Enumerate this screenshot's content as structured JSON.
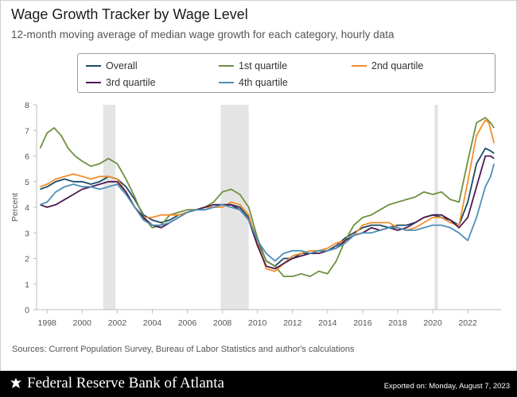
{
  "header": {
    "title": "Wage Growth Tracker by Wage Level",
    "subtitle": "12-month moving average of median wage growth for each category, hourly data"
  },
  "footer": {
    "sources": "Sources: Current Population Survey, Bureau of Labor Statistics and author's calculations",
    "brand": "Federal Reserve Bank of Atlanta",
    "brand_icon": "eagle-seal-icon",
    "exported": "Exported on: Monday, August 7, 2023"
  },
  "chart_data": {
    "type": "line",
    "title": "Wage Growth Tracker by Wage Level",
    "subtitle": "12-month moving average of median wage growth for each category, hourly data",
    "xlabel": "",
    "ylabel": "Percent",
    "xlim": [
      1997.4,
      2023.9
    ],
    "ylim": [
      0,
      8
    ],
    "y_ticks": [
      0,
      1,
      2,
      3,
      4,
      5,
      6,
      7,
      8
    ],
    "x_ticks": [
      1998,
      2000,
      2002,
      2004,
      2006,
      2008,
      2010,
      2012,
      2014,
      2016,
      2018,
      2020,
      2022
    ],
    "grid": false,
    "legend_position": "top",
    "recessions": [
      [
        2001.2,
        2001.9
      ],
      [
        2007.9,
        2009.5
      ],
      [
        2020.1,
        2020.3
      ]
    ],
    "series": [
      {
        "name": "Overall",
        "color": "#1b4a67",
        "points": [
          [
            1997.6,
            4.7
          ],
          [
            1998.0,
            4.8
          ],
          [
            1998.5,
            5.0
          ],
          [
            1999.0,
            5.1
          ],
          [
            1999.5,
            5.0
          ],
          [
            2000.0,
            5.0
          ],
          [
            2000.5,
            4.9
          ],
          [
            2001.0,
            5.0
          ],
          [
            2001.5,
            5.2
          ],
          [
            2002.0,
            5.1
          ],
          [
            2002.5,
            4.8
          ],
          [
            2003.0,
            4.3
          ],
          [
            2003.5,
            3.7
          ],
          [
            2004.0,
            3.5
          ],
          [
            2004.5,
            3.4
          ],
          [
            2005.0,
            3.5
          ],
          [
            2005.5,
            3.7
          ],
          [
            2006.0,
            3.8
          ],
          [
            2006.5,
            3.9
          ],
          [
            2007.0,
            3.9
          ],
          [
            2007.5,
            4.0
          ],
          [
            2008.0,
            4.1
          ],
          [
            2008.5,
            4.1
          ],
          [
            2009.0,
            4.0
          ],
          [
            2009.5,
            3.6
          ],
          [
            2010.0,
            2.7
          ],
          [
            2010.5,
            1.9
          ],
          [
            2011.0,
            1.7
          ],
          [
            2011.5,
            2.0
          ],
          [
            2012.0,
            2.0
          ],
          [
            2012.5,
            2.2
          ],
          [
            2013.0,
            2.2
          ],
          [
            2013.5,
            2.3
          ],
          [
            2014.0,
            2.3
          ],
          [
            2014.5,
            2.5
          ],
          [
            2015.0,
            2.8
          ],
          [
            2015.5,
            3.0
          ],
          [
            2016.0,
            3.2
          ],
          [
            2016.5,
            3.3
          ],
          [
            2017.0,
            3.3
          ],
          [
            2017.5,
            3.2
          ],
          [
            2018.0,
            3.3
          ],
          [
            2018.5,
            3.3
          ],
          [
            2019.0,
            3.4
          ],
          [
            2019.5,
            3.6
          ],
          [
            2020.0,
            3.7
          ],
          [
            2020.5,
            3.6
          ],
          [
            2021.0,
            3.5
          ],
          [
            2021.5,
            3.3
          ],
          [
            2022.0,
            4.2
          ],
          [
            2022.5,
            5.7
          ],
          [
            2023.0,
            6.3
          ],
          [
            2023.3,
            6.2
          ],
          [
            2023.5,
            6.1
          ]
        ]
      },
      {
        "name": "1st quartile",
        "color": "#6e9140",
        "points": [
          [
            1997.6,
            6.3
          ],
          [
            1998.0,
            6.9
          ],
          [
            1998.4,
            7.1
          ],
          [
            1998.8,
            6.8
          ],
          [
            1999.2,
            6.3
          ],
          [
            1999.6,
            6.0
          ],
          [
            2000.0,
            5.8
          ],
          [
            2000.5,
            5.6
          ],
          [
            2001.0,
            5.7
          ],
          [
            2001.5,
            5.9
          ],
          [
            2002.0,
            5.7
          ],
          [
            2002.5,
            5.1
          ],
          [
            2003.0,
            4.4
          ],
          [
            2003.5,
            3.6
          ],
          [
            2004.0,
            3.2
          ],
          [
            2004.5,
            3.3
          ],
          [
            2005.0,
            3.7
          ],
          [
            2005.5,
            3.8
          ],
          [
            2006.0,
            3.9
          ],
          [
            2006.5,
            3.9
          ],
          [
            2007.0,
            4.0
          ],
          [
            2007.5,
            4.2
          ],
          [
            2008.0,
            4.6
          ],
          [
            2008.5,
            4.7
          ],
          [
            2009.0,
            4.5
          ],
          [
            2009.5,
            4.0
          ],
          [
            2010.0,
            2.8
          ],
          [
            2010.5,
            1.9
          ],
          [
            2011.0,
            1.7
          ],
          [
            2011.5,
            1.3
          ],
          [
            2012.0,
            1.3
          ],
          [
            2012.5,
            1.4
          ],
          [
            2013.0,
            1.3
          ],
          [
            2013.5,
            1.5
          ],
          [
            2014.0,
            1.4
          ],
          [
            2014.5,
            1.9
          ],
          [
            2015.0,
            2.7
          ],
          [
            2015.5,
            3.3
          ],
          [
            2016.0,
            3.6
          ],
          [
            2016.5,
            3.7
          ],
          [
            2017.0,
            3.9
          ],
          [
            2017.5,
            4.1
          ],
          [
            2018.0,
            4.2
          ],
          [
            2018.5,
            4.3
          ],
          [
            2019.0,
            4.4
          ],
          [
            2019.5,
            4.6
          ],
          [
            2020.0,
            4.5
          ],
          [
            2020.5,
            4.6
          ],
          [
            2021.0,
            4.3
          ],
          [
            2021.5,
            4.2
          ],
          [
            2022.0,
            5.8
          ],
          [
            2022.5,
            7.3
          ],
          [
            2023.0,
            7.5
          ],
          [
            2023.3,
            7.3
          ],
          [
            2023.5,
            7.1
          ]
        ]
      },
      {
        "name": "2nd quartile",
        "color": "#f28e2b",
        "points": [
          [
            1997.6,
            4.8
          ],
          [
            1998.0,
            4.9
          ],
          [
            1998.5,
            5.1
          ],
          [
            1999.0,
            5.2
          ],
          [
            1999.5,
            5.3
          ],
          [
            2000.0,
            5.2
          ],
          [
            2000.5,
            5.1
          ],
          [
            2001.0,
            5.2
          ],
          [
            2001.5,
            5.2
          ],
          [
            2002.0,
            5.1
          ],
          [
            2002.5,
            4.6
          ],
          [
            2003.0,
            4.0
          ],
          [
            2003.5,
            3.6
          ],
          [
            2004.0,
            3.6
          ],
          [
            2004.5,
            3.7
          ],
          [
            2005.0,
            3.7
          ],
          [
            2005.5,
            3.7
          ],
          [
            2006.0,
            3.8
          ],
          [
            2006.5,
            3.9
          ],
          [
            2007.0,
            4.0
          ],
          [
            2007.5,
            4.0
          ],
          [
            2008.0,
            4.0
          ],
          [
            2008.5,
            4.2
          ],
          [
            2009.0,
            4.1
          ],
          [
            2009.5,
            3.7
          ],
          [
            2010.0,
            2.6
          ],
          [
            2010.5,
            1.6
          ],
          [
            2011.0,
            1.5
          ],
          [
            2011.5,
            1.8
          ],
          [
            2012.0,
            2.1
          ],
          [
            2012.5,
            2.2
          ],
          [
            2013.0,
            2.3
          ],
          [
            2013.5,
            2.3
          ],
          [
            2014.0,
            2.4
          ],
          [
            2014.5,
            2.6
          ],
          [
            2015.0,
            2.7
          ],
          [
            2015.5,
            2.9
          ],
          [
            2016.0,
            3.3
          ],
          [
            2016.5,
            3.4
          ],
          [
            2017.0,
            3.4
          ],
          [
            2017.5,
            3.4
          ],
          [
            2018.0,
            3.2
          ],
          [
            2018.5,
            3.1
          ],
          [
            2019.0,
            3.2
          ],
          [
            2019.5,
            3.4
          ],
          [
            2020.0,
            3.6
          ],
          [
            2020.5,
            3.6
          ],
          [
            2021.0,
            3.4
          ],
          [
            2021.5,
            3.3
          ],
          [
            2022.0,
            5.0
          ],
          [
            2022.5,
            6.8
          ],
          [
            2023.0,
            7.4
          ],
          [
            2023.2,
            7.3
          ],
          [
            2023.5,
            6.5
          ]
        ]
      },
      {
        "name": "3rd quartile",
        "color": "#4b1a50",
        "points": [
          [
            1997.6,
            4.1
          ],
          [
            1998.0,
            4.0
          ],
          [
            1998.5,
            4.1
          ],
          [
            1999.0,
            4.3
          ],
          [
            1999.5,
            4.5
          ],
          [
            2000.0,
            4.7
          ],
          [
            2000.5,
            4.8
          ],
          [
            2001.0,
            4.9
          ],
          [
            2001.5,
            5.0
          ],
          [
            2002.0,
            5.0
          ],
          [
            2002.5,
            4.6
          ],
          [
            2003.0,
            4.0
          ],
          [
            2003.5,
            3.6
          ],
          [
            2004.0,
            3.3
          ],
          [
            2004.5,
            3.2
          ],
          [
            2005.0,
            3.4
          ],
          [
            2005.5,
            3.6
          ],
          [
            2006.0,
            3.8
          ],
          [
            2006.5,
            3.9
          ],
          [
            2007.0,
            4.0
          ],
          [
            2007.5,
            4.1
          ],
          [
            2008.0,
            4.1
          ],
          [
            2008.5,
            4.1
          ],
          [
            2009.0,
            3.9
          ],
          [
            2009.5,
            3.5
          ],
          [
            2010.0,
            2.5
          ],
          [
            2010.5,
            1.7
          ],
          [
            2011.0,
            1.6
          ],
          [
            2011.5,
            1.8
          ],
          [
            2012.0,
            2.0
          ],
          [
            2012.5,
            2.1
          ],
          [
            2013.0,
            2.2
          ],
          [
            2013.5,
            2.2
          ],
          [
            2014.0,
            2.3
          ],
          [
            2014.5,
            2.4
          ],
          [
            2015.0,
            2.7
          ],
          [
            2015.5,
            2.9
          ],
          [
            2016.0,
            3.0
          ],
          [
            2016.5,
            3.2
          ],
          [
            2017.0,
            3.1
          ],
          [
            2017.5,
            3.2
          ],
          [
            2018.0,
            3.1
          ],
          [
            2018.5,
            3.2
          ],
          [
            2019.0,
            3.4
          ],
          [
            2019.5,
            3.6
          ],
          [
            2020.0,
            3.7
          ],
          [
            2020.5,
            3.7
          ],
          [
            2021.0,
            3.5
          ],
          [
            2021.5,
            3.2
          ],
          [
            2022.0,
            3.6
          ],
          [
            2022.5,
            4.8
          ],
          [
            2023.0,
            6.0
          ],
          [
            2023.3,
            6.0
          ],
          [
            2023.5,
            5.9
          ]
        ]
      },
      {
        "name": "4th quartile",
        "color": "#4f8fb8",
        "points": [
          [
            1997.6,
            4.1
          ],
          [
            1998.0,
            4.2
          ],
          [
            1998.5,
            4.6
          ],
          [
            1999.0,
            4.8
          ],
          [
            1999.5,
            4.9
          ],
          [
            2000.0,
            4.8
          ],
          [
            2000.5,
            4.8
          ],
          [
            2001.0,
            4.7
          ],
          [
            2001.5,
            4.8
          ],
          [
            2002.0,
            4.9
          ],
          [
            2002.5,
            4.5
          ],
          [
            2003.0,
            4.0
          ],
          [
            2003.5,
            3.5
          ],
          [
            2004.0,
            3.3
          ],
          [
            2004.5,
            3.3
          ],
          [
            2005.0,
            3.4
          ],
          [
            2005.5,
            3.6
          ],
          [
            2006.0,
            3.8
          ],
          [
            2006.5,
            3.9
          ],
          [
            2007.0,
            3.9
          ],
          [
            2007.5,
            4.0
          ],
          [
            2008.0,
            4.1
          ],
          [
            2008.5,
            4.0
          ],
          [
            2009.0,
            3.9
          ],
          [
            2009.5,
            3.5
          ],
          [
            2010.0,
            2.7
          ],
          [
            2010.5,
            2.2
          ],
          [
            2011.0,
            1.9
          ],
          [
            2011.5,
            2.2
          ],
          [
            2012.0,
            2.3
          ],
          [
            2012.5,
            2.3
          ],
          [
            2013.0,
            2.2
          ],
          [
            2013.5,
            2.3
          ],
          [
            2014.0,
            2.3
          ],
          [
            2014.5,
            2.4
          ],
          [
            2015.0,
            2.6
          ],
          [
            2015.5,
            2.9
          ],
          [
            2016.0,
            3.0
          ],
          [
            2016.5,
            3.0
          ],
          [
            2017.0,
            3.1
          ],
          [
            2017.5,
            3.2
          ],
          [
            2018.0,
            3.2
          ],
          [
            2018.5,
            3.1
          ],
          [
            2019.0,
            3.1
          ],
          [
            2019.5,
            3.2
          ],
          [
            2020.0,
            3.3
          ],
          [
            2020.5,
            3.3
          ],
          [
            2021.0,
            3.2
          ],
          [
            2021.5,
            3.0
          ],
          [
            2022.0,
            2.7
          ],
          [
            2022.5,
            3.6
          ],
          [
            2023.0,
            4.8
          ],
          [
            2023.3,
            5.2
          ],
          [
            2023.5,
            5.7
          ]
        ]
      }
    ]
  }
}
